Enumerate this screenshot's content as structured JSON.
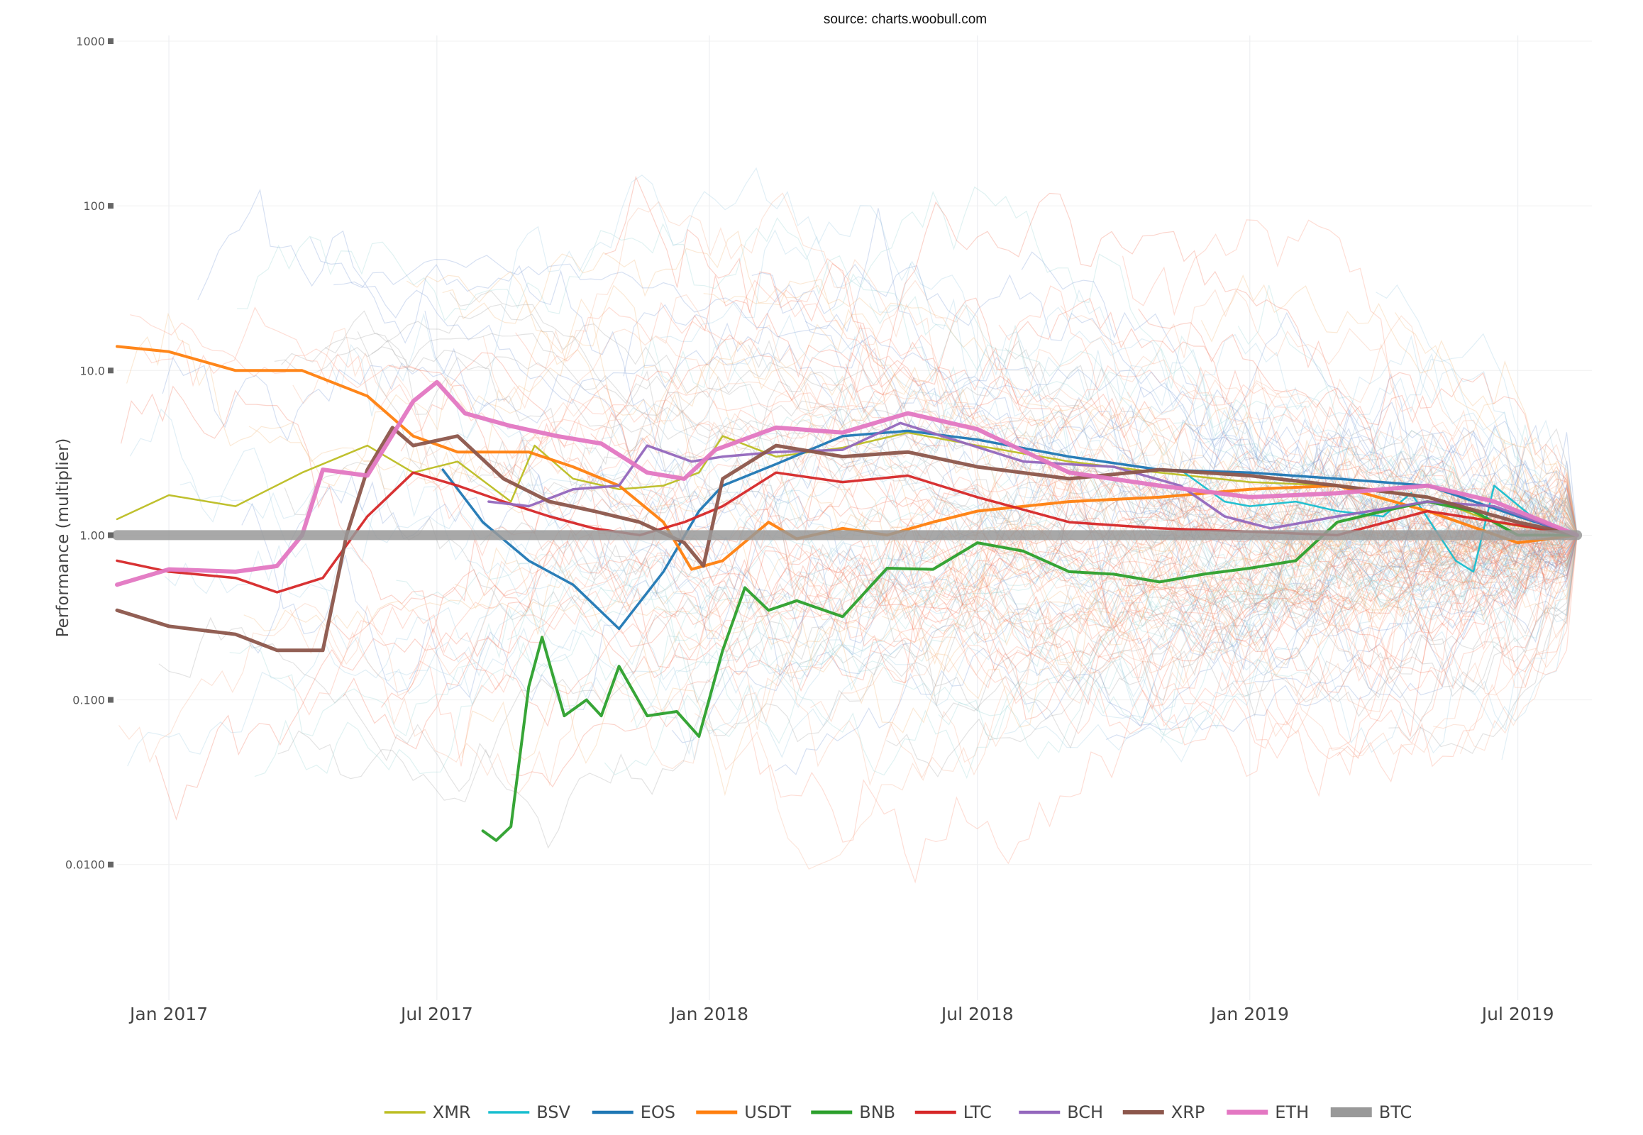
{
  "chart_data": {
    "type": "line",
    "source_note": "source: charts.woobull.com",
    "ylabel": "Performance (multiplier)",
    "xlabel": "",
    "y_scale": "log",
    "ylim": [
      0.0015,
      1000
    ],
    "xlim": [
      "2016-11-27",
      "2019-08-20"
    ],
    "y_ticks": [
      {
        "value": 1000,
        "label": "1000"
      },
      {
        "value": 100,
        "label": "100"
      },
      {
        "value": 10,
        "label": "10.0"
      },
      {
        "value": 1,
        "label": "1.00"
      },
      {
        "value": 0.1,
        "label": "0.100"
      },
      {
        "value": 0.01,
        "label": "0.0100"
      }
    ],
    "x_ticks": [
      {
        "value": "2017-01-01",
        "label": "Jan 2017"
      },
      {
        "value": "2017-07-01",
        "label": "Jul 2017"
      },
      {
        "value": "2018-01-01",
        "label": "Jan 2018"
      },
      {
        "value": "2018-07-01",
        "label": "Jul 2018"
      },
      {
        "value": "2019-01-01",
        "label": "Jan 2019"
      },
      {
        "value": "2019-07-01",
        "label": "Jul 2019"
      }
    ],
    "grid": true,
    "legend_position": "bottom-center",
    "background_series_colors": [
      "#f4a582",
      "#fb8a6a",
      "#ef6548",
      "#92c5de",
      "#6a8fd0",
      "#9b9b9b",
      "#8fd0cf",
      "#f2b06b"
    ],
    "series": [
      {
        "name": "XMR",
        "color": "#bcbd22",
        "width": 2.5,
        "points": [
          [
            "2016-11-27",
            1.25
          ],
          [
            "2017-01-01",
            1.75
          ],
          [
            "2017-02-15",
            1.5
          ],
          [
            "2017-04-01",
            2.4
          ],
          [
            "2017-05-15",
            3.5
          ],
          [
            "2017-06-15",
            2.4
          ],
          [
            "2017-07-15",
            2.8
          ],
          [
            "2017-08-20",
            1.6
          ],
          [
            "2017-09-05",
            3.5
          ],
          [
            "2017-10-01",
            2.2
          ],
          [
            "2017-11-01",
            1.9
          ],
          [
            "2017-12-01",
            2.0
          ],
          [
            "2017-12-25",
            2.4
          ],
          [
            "2018-01-10",
            4.0
          ],
          [
            "2018-02-15",
            3.0
          ],
          [
            "2018-04-01",
            3.4
          ],
          [
            "2018-05-15",
            4.2
          ],
          [
            "2018-07-01",
            3.5
          ],
          [
            "2018-09-01",
            2.8
          ],
          [
            "2018-11-01",
            2.4
          ],
          [
            "2019-01-01",
            2.1
          ],
          [
            "2019-03-01",
            2.0
          ],
          [
            "2019-05-01",
            1.7
          ],
          [
            "2019-06-15",
            1.2
          ],
          [
            "2019-08-10",
            1.0
          ]
        ]
      },
      {
        "name": "BSV",
        "color": "#17becf",
        "width": 2.5,
        "points": [
          [
            "2018-11-15",
            2.5
          ],
          [
            "2018-12-15",
            1.6
          ],
          [
            "2019-01-01",
            1.5
          ],
          [
            "2019-02-01",
            1.6
          ],
          [
            "2019-03-01",
            1.4
          ],
          [
            "2019-04-01",
            1.3
          ],
          [
            "2019-04-20",
            1.8
          ],
          [
            "2019-05-20",
            0.7
          ],
          [
            "2019-06-01",
            0.6
          ],
          [
            "2019-06-15",
            2.0
          ],
          [
            "2019-07-15",
            1.2
          ],
          [
            "2019-08-10",
            1.0
          ]
        ]
      },
      {
        "name": "EOS",
        "color": "#1f77b4",
        "width": 3.5,
        "points": [
          [
            "2017-07-05",
            2.5
          ],
          [
            "2017-08-01",
            1.2
          ],
          [
            "2017-09-01",
            0.7
          ],
          [
            "2017-10-01",
            0.5
          ],
          [
            "2017-11-01",
            0.27
          ],
          [
            "2017-12-01",
            0.6
          ],
          [
            "2017-12-25",
            1.4
          ],
          [
            "2018-01-10",
            2.0
          ],
          [
            "2018-02-15",
            2.7
          ],
          [
            "2018-04-01",
            4.0
          ],
          [
            "2018-05-15",
            4.3
          ],
          [
            "2018-07-01",
            3.8
          ],
          [
            "2018-09-01",
            3.0
          ],
          [
            "2018-11-01",
            2.5
          ],
          [
            "2019-01-01",
            2.4
          ],
          [
            "2019-03-01",
            2.2
          ],
          [
            "2019-05-01",
            2.0
          ],
          [
            "2019-07-01",
            1.3
          ],
          [
            "2019-08-10",
            1.0
          ]
        ]
      },
      {
        "name": "USDT",
        "color": "#ff7f0e",
        "width": 4,
        "points": [
          [
            "2016-11-27",
            14
          ],
          [
            "2017-01-01",
            13
          ],
          [
            "2017-02-15",
            10
          ],
          [
            "2017-04-01",
            10
          ],
          [
            "2017-05-15",
            7
          ],
          [
            "2017-06-15",
            4
          ],
          [
            "2017-07-15",
            3.2
          ],
          [
            "2017-09-01",
            3.2
          ],
          [
            "2017-10-01",
            2.6
          ],
          [
            "2017-11-01",
            2.0
          ],
          [
            "2017-12-01",
            1.2
          ],
          [
            "2017-12-20",
            0.62
          ],
          [
            "2018-01-10",
            0.7
          ],
          [
            "2018-02-10",
            1.2
          ],
          [
            "2018-03-01",
            0.95
          ],
          [
            "2018-04-01",
            1.1
          ],
          [
            "2018-05-01",
            1.0
          ],
          [
            "2018-06-01",
            1.2
          ],
          [
            "2018-07-01",
            1.4
          ],
          [
            "2018-09-01",
            1.6
          ],
          [
            "2018-11-01",
            1.7
          ],
          [
            "2019-01-01",
            1.9
          ],
          [
            "2019-03-01",
            2.0
          ],
          [
            "2019-05-01",
            1.4
          ],
          [
            "2019-07-01",
            0.9
          ],
          [
            "2019-08-10",
            1.0
          ]
        ]
      },
      {
        "name": "BNB",
        "color": "#2ca02c",
        "width": 4,
        "points": [
          [
            "2017-08-01",
            0.016
          ],
          [
            "2017-08-10",
            0.014
          ],
          [
            "2017-08-20",
            0.017
          ],
          [
            "2017-09-01",
            0.12
          ],
          [
            "2017-09-10",
            0.24
          ],
          [
            "2017-09-25",
            0.08
          ],
          [
            "2017-10-10",
            0.1
          ],
          [
            "2017-10-20",
            0.08
          ],
          [
            "2017-11-01",
            0.16
          ],
          [
            "2017-11-20",
            0.08
          ],
          [
            "2017-12-10",
            0.085
          ],
          [
            "2017-12-25",
            0.06
          ],
          [
            "2018-01-10",
            0.2
          ],
          [
            "2018-01-25",
            0.48
          ],
          [
            "2018-02-10",
            0.35
          ],
          [
            "2018-03-01",
            0.4
          ],
          [
            "2018-04-01",
            0.32
          ],
          [
            "2018-05-01",
            0.63
          ],
          [
            "2018-06-01",
            0.62
          ],
          [
            "2018-07-01",
            0.9
          ],
          [
            "2018-08-01",
            0.8
          ],
          [
            "2018-09-01",
            0.6
          ],
          [
            "2018-10-01",
            0.58
          ],
          [
            "2018-11-01",
            0.52
          ],
          [
            "2018-12-01",
            0.58
          ],
          [
            "2019-01-01",
            0.63
          ],
          [
            "2019-02-01",
            0.7
          ],
          [
            "2019-03-01",
            1.2
          ],
          [
            "2019-04-01",
            1.4
          ],
          [
            "2019-05-01",
            1.6
          ],
          [
            "2019-06-01",
            1.4
          ],
          [
            "2019-07-01",
            1.0
          ],
          [
            "2019-08-10",
            1.0
          ]
        ]
      },
      {
        "name": "LTC",
        "color": "#d62728",
        "width": 3.5,
        "points": [
          [
            "2016-11-27",
            0.7
          ],
          [
            "2017-01-01",
            0.6
          ],
          [
            "2017-02-15",
            0.55
          ],
          [
            "2017-03-15",
            0.45
          ],
          [
            "2017-04-15",
            0.55
          ],
          [
            "2017-05-15",
            1.3
          ],
          [
            "2017-06-15",
            2.4
          ],
          [
            "2017-07-15",
            2.0
          ],
          [
            "2017-08-15",
            1.6
          ],
          [
            "2017-09-15",
            1.3
          ],
          [
            "2017-10-15",
            1.1
          ],
          [
            "2017-11-15",
            1.0
          ],
          [
            "2017-12-15",
            1.2
          ],
          [
            "2018-01-10",
            1.5
          ],
          [
            "2018-02-15",
            2.4
          ],
          [
            "2018-04-01",
            2.1
          ],
          [
            "2018-05-15",
            2.3
          ],
          [
            "2018-07-01",
            1.7
          ],
          [
            "2018-09-01",
            1.2
          ],
          [
            "2018-11-01",
            1.1
          ],
          [
            "2019-01-01",
            1.05
          ],
          [
            "2019-03-01",
            1.0
          ],
          [
            "2019-05-01",
            1.4
          ],
          [
            "2019-07-01",
            1.15
          ],
          [
            "2019-08-10",
            1.0
          ]
        ]
      },
      {
        "name": "BCH",
        "color": "#9467bd",
        "width": 3.5,
        "points": [
          [
            "2017-08-05",
            1.6
          ],
          [
            "2017-09-01",
            1.5
          ],
          [
            "2017-10-01",
            1.9
          ],
          [
            "2017-11-01",
            2.0
          ],
          [
            "2017-11-20",
            3.5
          ],
          [
            "2017-12-20",
            2.8
          ],
          [
            "2018-01-10",
            3.0
          ],
          [
            "2018-02-15",
            3.2
          ],
          [
            "2018-04-01",
            3.3
          ],
          [
            "2018-05-10",
            4.8
          ],
          [
            "2018-06-15",
            3.8
          ],
          [
            "2018-08-01",
            2.8
          ],
          [
            "2018-10-01",
            2.6
          ],
          [
            "2018-11-15",
            2.0
          ],
          [
            "2018-12-15",
            1.3
          ],
          [
            "2019-01-15",
            1.1
          ],
          [
            "2019-03-01",
            1.3
          ],
          [
            "2019-05-01",
            1.6
          ],
          [
            "2019-06-15",
            1.5
          ],
          [
            "2019-07-15",
            1.2
          ],
          [
            "2019-08-10",
            1.0
          ]
        ]
      },
      {
        "name": "XRP",
        "color": "#8c564b",
        "width": 5,
        "points": [
          [
            "2016-11-27",
            0.35
          ],
          [
            "2017-01-01",
            0.28
          ],
          [
            "2017-02-15",
            0.25
          ],
          [
            "2017-03-15",
            0.2
          ],
          [
            "2017-04-15",
            0.2
          ],
          [
            "2017-05-01",
            1.0
          ],
          [
            "2017-05-15",
            2.5
          ],
          [
            "2017-06-01",
            4.5
          ],
          [
            "2017-06-15",
            3.5
          ],
          [
            "2017-07-15",
            4.0
          ],
          [
            "2017-08-15",
            2.2
          ],
          [
            "2017-09-15",
            1.6
          ],
          [
            "2017-10-15",
            1.4
          ],
          [
            "2017-11-15",
            1.2
          ],
          [
            "2017-12-15",
            0.9
          ],
          [
            "2017-12-28",
            0.65
          ],
          [
            "2018-01-10",
            2.2
          ],
          [
            "2018-02-15",
            3.5
          ],
          [
            "2018-04-01",
            3.0
          ],
          [
            "2018-05-15",
            3.2
          ],
          [
            "2018-07-01",
            2.6
          ],
          [
            "2018-09-01",
            2.2
          ],
          [
            "2018-11-01",
            2.5
          ],
          [
            "2019-01-01",
            2.3
          ],
          [
            "2019-03-01",
            2.0
          ],
          [
            "2019-05-01",
            1.7
          ],
          [
            "2019-07-01",
            1.2
          ],
          [
            "2019-08-10",
            1.0
          ]
        ]
      },
      {
        "name": "ETH",
        "color": "#e377c2",
        "width": 6,
        "points": [
          [
            "2016-11-27",
            0.5
          ],
          [
            "2017-01-01",
            0.62
          ],
          [
            "2017-02-15",
            0.6
          ],
          [
            "2017-03-15",
            0.65
          ],
          [
            "2017-04-01",
            1.0
          ],
          [
            "2017-04-15",
            2.5
          ],
          [
            "2017-05-15",
            2.3
          ],
          [
            "2017-06-15",
            6.5
          ],
          [
            "2017-07-01",
            8.5
          ],
          [
            "2017-07-20",
            5.5
          ],
          [
            "2017-08-20",
            4.6
          ],
          [
            "2017-09-20",
            4.0
          ],
          [
            "2017-10-20",
            3.6
          ],
          [
            "2017-11-20",
            2.4
          ],
          [
            "2017-12-15",
            2.2
          ],
          [
            "2018-01-05",
            3.3
          ],
          [
            "2018-02-15",
            4.5
          ],
          [
            "2018-04-01",
            4.2
          ],
          [
            "2018-05-15",
            5.5
          ],
          [
            "2018-07-01",
            4.4
          ],
          [
            "2018-09-01",
            2.4
          ],
          [
            "2018-11-01",
            2.0
          ],
          [
            "2019-01-01",
            1.7
          ],
          [
            "2019-03-01",
            1.8
          ],
          [
            "2019-05-01",
            2.0
          ],
          [
            "2019-06-15",
            1.6
          ],
          [
            "2019-08-10",
            1.0
          ]
        ]
      },
      {
        "name": "BTC",
        "color": "#999999",
        "width": 14,
        "points": [
          [
            "2016-11-27",
            1.0
          ],
          [
            "2019-08-10",
            1.0
          ]
        ]
      }
    ]
  }
}
